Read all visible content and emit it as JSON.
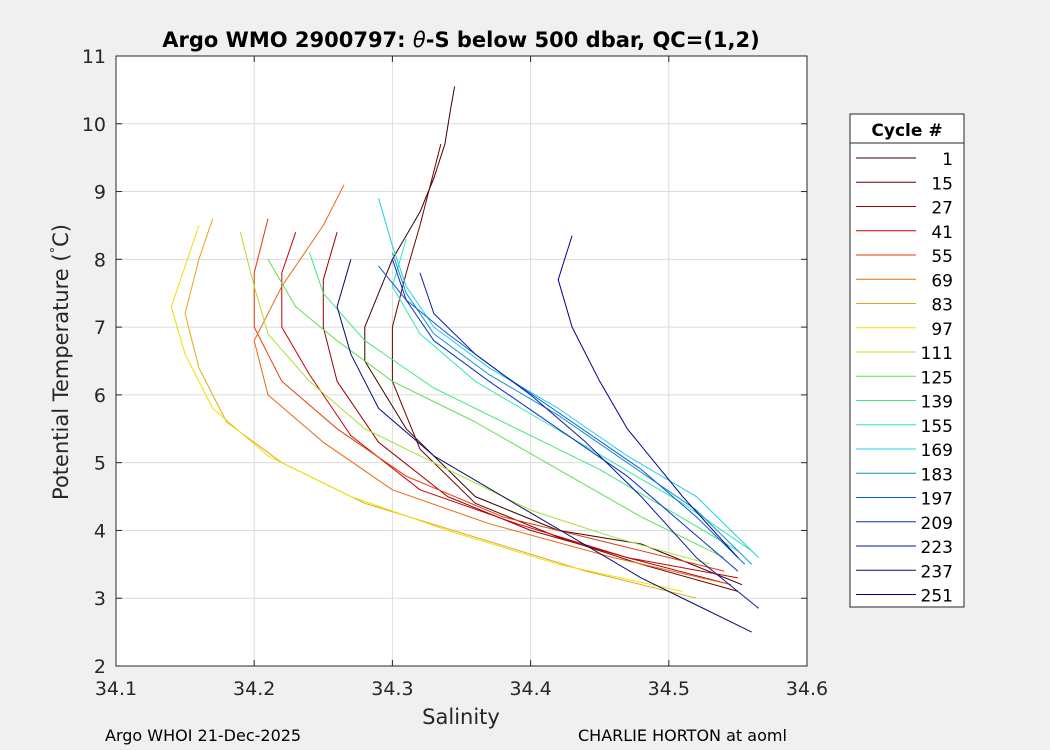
{
  "chart_data": {
    "type": "line",
    "title_prefix": "Argo WMO 2900797: ",
    "title_theta": "θ",
    "title_suffix": "-S below 500 dbar,  QC=(1,2)",
    "xlabel": "Salinity",
    "ylabel": "Potential Temperature (",
    "ylabel_degree": "°",
    "ylabel_unit": "C)",
    "xlim": [
      34.1,
      34.6
    ],
    "ylim": [
      2,
      11
    ],
    "xticks": [
      34.1,
      34.2,
      34.3,
      34.4,
      34.5,
      34.6
    ],
    "xtick_labels": [
      "34.1",
      "34.2",
      "34.3",
      "34.4",
      "34.5",
      "34.6"
    ],
    "yticks": [
      2,
      3,
      4,
      5,
      6,
      7,
      8,
      9,
      10,
      11
    ],
    "ytick_labels": [
      "2",
      "3",
      "4",
      "5",
      "6",
      "7",
      "8",
      "9",
      "10",
      "11"
    ],
    "grid": true,
    "legend_title": "Cycle #",
    "legend_position": "right-outside",
    "series": [
      {
        "name": "1",
        "color": "#3a0000",
        "values": [
          [
            34.553,
            3.2
          ],
          [
            34.48,
            3.8
          ],
          [
            34.42,
            4.0
          ],
          [
            34.36,
            4.5
          ],
          [
            34.31,
            5.5
          ],
          [
            34.28,
            6.5
          ],
          [
            34.28,
            7.0
          ],
          [
            34.3,
            8.0
          ],
          [
            34.32,
            8.7
          ],
          [
            34.33,
            9.2
          ],
          [
            34.338,
            9.7
          ],
          [
            34.342,
            10.2
          ],
          [
            34.345,
            10.55
          ]
        ]
      },
      {
        "name": "15",
        "color": "#6e0000",
        "values": [
          [
            34.55,
            3.1
          ],
          [
            34.48,
            3.5
          ],
          [
            34.42,
            3.9
          ],
          [
            34.36,
            4.4
          ],
          [
            34.32,
            5.2
          ],
          [
            34.3,
            6.2
          ],
          [
            34.3,
            7.0
          ],
          [
            34.31,
            7.8
          ],
          [
            34.32,
            8.5
          ],
          [
            34.33,
            9.3
          ],
          [
            34.335,
            9.7
          ]
        ]
      },
      {
        "name": "27",
        "color": "#9a0000",
        "values": [
          [
            34.545,
            3.2
          ],
          [
            34.47,
            3.6
          ],
          [
            34.4,
            4.0
          ],
          [
            34.34,
            4.5
          ],
          [
            34.29,
            5.3
          ],
          [
            34.26,
            6.2
          ],
          [
            34.25,
            7.0
          ],
          [
            34.25,
            7.7
          ],
          [
            34.26,
            8.4
          ]
        ]
      },
      {
        "name": "41",
        "color": "#cc0000",
        "values": [
          [
            34.55,
            3.3
          ],
          [
            34.47,
            3.6
          ],
          [
            34.39,
            4.1
          ],
          [
            34.32,
            4.6
          ],
          [
            34.27,
            5.4
          ],
          [
            34.24,
            6.3
          ],
          [
            34.22,
            7.0
          ],
          [
            34.22,
            7.8
          ],
          [
            34.23,
            8.4
          ]
        ]
      },
      {
        "name": "55",
        "color": "#e33a0a",
        "values": [
          [
            34.54,
            3.4
          ],
          [
            34.46,
            3.8
          ],
          [
            34.38,
            4.2
          ],
          [
            34.31,
            4.8
          ],
          [
            34.26,
            5.5
          ],
          [
            34.22,
            6.2
          ],
          [
            34.2,
            7.0
          ],
          [
            34.2,
            7.8
          ],
          [
            34.21,
            8.6
          ]
        ]
      },
      {
        "name": "69",
        "color": "#e86a10",
        "values": [
          [
            34.545,
            3.2
          ],
          [
            34.46,
            3.6
          ],
          [
            34.37,
            4.1
          ],
          [
            34.3,
            4.6
          ],
          [
            34.25,
            5.3
          ],
          [
            34.21,
            6.0
          ],
          [
            34.2,
            6.8
          ],
          [
            34.22,
            7.6
          ],
          [
            34.25,
            8.5
          ],
          [
            34.265,
            9.1
          ]
        ]
      },
      {
        "name": "83",
        "color": "#e3a51a",
        "values": [
          [
            34.52,
            3.0
          ],
          [
            34.44,
            3.4
          ],
          [
            34.36,
            3.9
          ],
          [
            34.28,
            4.4
          ],
          [
            34.22,
            5.0
          ],
          [
            34.18,
            5.6
          ],
          [
            34.16,
            6.4
          ],
          [
            34.15,
            7.2
          ],
          [
            34.16,
            8.0
          ],
          [
            34.17,
            8.6
          ]
        ]
      },
      {
        "name": "97",
        "color": "#f0e000",
        "values": [
          [
            34.51,
            3.1
          ],
          [
            34.42,
            3.5
          ],
          [
            34.34,
            4.0
          ],
          [
            34.27,
            4.5
          ],
          [
            34.21,
            5.1
          ],
          [
            34.17,
            5.8
          ],
          [
            34.15,
            6.6
          ],
          [
            34.14,
            7.3
          ],
          [
            34.15,
            7.9
          ],
          [
            34.16,
            8.5
          ]
        ]
      },
      {
        "name": "111",
        "color": "#a8e030",
        "values": [
          [
            34.53,
            3.5
          ],
          [
            34.46,
            3.9
          ],
          [
            34.4,
            4.3
          ],
          [
            34.34,
            4.9
          ],
          [
            34.28,
            5.5
          ],
          [
            34.24,
            6.2
          ],
          [
            34.21,
            6.9
          ],
          [
            34.2,
            7.6
          ],
          [
            34.19,
            8.4
          ]
        ]
      },
      {
        "name": "125",
        "color": "#60e050",
        "values": [
          [
            34.54,
            3.6
          ],
          [
            34.48,
            4.2
          ],
          [
            34.42,
            4.9
          ],
          [
            34.36,
            5.6
          ],
          [
            34.3,
            6.2
          ],
          [
            34.26,
            6.8
          ],
          [
            34.23,
            7.3
          ],
          [
            34.21,
            8.0
          ]
        ]
      },
      {
        "name": "139",
        "color": "#40e880",
        "values": [
          [
            34.55,
            3.7
          ],
          [
            34.5,
            4.3
          ],
          [
            34.45,
            4.9
          ],
          [
            34.39,
            5.5
          ],
          [
            34.33,
            6.1
          ],
          [
            34.28,
            6.8
          ],
          [
            34.25,
            7.5
          ],
          [
            34.24,
            8.1
          ]
        ]
      },
      {
        "name": "155",
        "color": "#30e8b0",
        "values": [
          [
            34.56,
            3.7
          ],
          [
            34.51,
            4.4
          ],
          [
            34.46,
            5.0
          ],
          [
            34.41,
            5.6
          ],
          [
            34.36,
            6.2
          ],
          [
            34.32,
            6.9
          ],
          [
            34.3,
            7.6
          ],
          [
            34.31,
            8.3
          ]
        ]
      },
      {
        "name": "169",
        "color": "#20d0e0",
        "values": [
          [
            34.565,
            3.6
          ],
          [
            34.52,
            4.5
          ],
          [
            34.47,
            5.1
          ],
          [
            34.42,
            5.8
          ],
          [
            34.37,
            6.4
          ],
          [
            34.33,
            7.0
          ],
          [
            34.31,
            7.6
          ],
          [
            34.3,
            8.2
          ],
          [
            34.29,
            8.9
          ]
        ]
      },
      {
        "name": "183",
        "color": "#1090d0",
        "values": [
          [
            34.56,
            3.5
          ],
          [
            34.52,
            4.3
          ],
          [
            34.47,
            5.0
          ],
          [
            34.42,
            5.7
          ],
          [
            34.37,
            6.3
          ],
          [
            34.33,
            6.9
          ],
          [
            34.31,
            7.5
          ],
          [
            34.3,
            8.1
          ]
        ]
      },
      {
        "name": "197",
        "color": "#0a5ae0",
        "values": [
          [
            34.555,
            3.5
          ],
          [
            34.52,
            4.2
          ],
          [
            34.48,
            4.9
          ],
          [
            34.43,
            5.6
          ],
          [
            34.38,
            6.3
          ],
          [
            34.34,
            6.9
          ],
          [
            34.31,
            7.4
          ],
          [
            34.29,
            7.9
          ]
        ]
      },
      {
        "name": "209",
        "color": "#0a30c8",
        "values": [
          [
            34.55,
            3.4
          ],
          [
            34.51,
            4.1
          ],
          [
            34.47,
            4.8
          ],
          [
            34.42,
            5.5
          ],
          [
            34.37,
            6.2
          ],
          [
            34.33,
            6.8
          ],
          [
            34.31,
            7.4
          ],
          [
            34.3,
            8.0
          ]
        ]
      },
      {
        "name": "223",
        "color": "#0a1aa0",
        "values": [
          [
            34.565,
            2.85
          ],
          [
            34.52,
            3.6
          ],
          [
            34.48,
            4.5
          ],
          [
            34.44,
            5.3
          ],
          [
            34.4,
            6.0
          ],
          [
            34.36,
            6.6
          ],
          [
            34.33,
            7.2
          ],
          [
            34.32,
            7.8
          ]
        ]
      },
      {
        "name": "237",
        "color": "#051070",
        "values": [
          [
            34.56,
            2.5
          ],
          [
            34.52,
            2.9
          ],
          [
            34.48,
            3.3
          ],
          [
            34.43,
            3.9
          ],
          [
            34.38,
            4.5
          ],
          [
            34.33,
            5.1
          ],
          [
            34.29,
            5.8
          ],
          [
            34.27,
            6.6
          ],
          [
            34.26,
            7.3
          ],
          [
            34.27,
            8.0
          ]
        ]
      },
      {
        "name": "251",
        "color": "#00008f",
        "values": [
          [
            34.55,
            3.6
          ],
          [
            34.51,
            4.5
          ],
          [
            34.47,
            5.5
          ],
          [
            34.45,
            6.2
          ],
          [
            34.43,
            7.0
          ],
          [
            34.42,
            7.7
          ],
          [
            34.43,
            8.35
          ]
        ]
      }
    ]
  },
  "footer": {
    "left": "Argo WHOI 21-Dec-2025",
    "right": "CHARLIE HORTON at aoml"
  }
}
